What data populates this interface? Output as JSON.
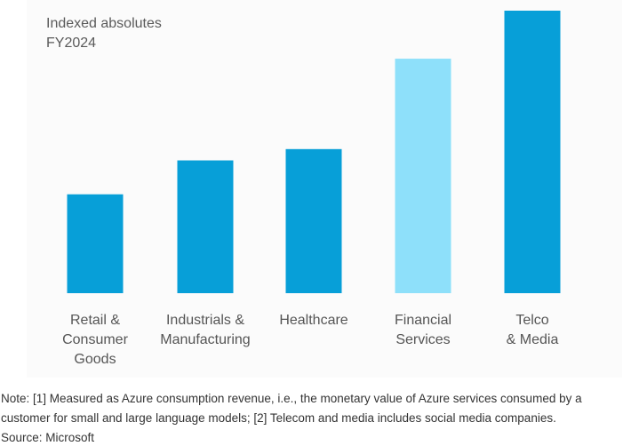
{
  "chart_data": {
    "type": "bar",
    "subtitle_lines": [
      "Indexed absolutes",
      "FY2024"
    ],
    "categories": [
      "Retail &\nConsumer\nGoods",
      "Industrials &\nManufacturing",
      "Healthcare",
      "Financial\nServices",
      "Telco\n& Media"
    ],
    "values": [
      35,
      47,
      51,
      83,
      100
    ],
    "ylim": [
      0,
      100
    ],
    "colors": [
      "#079fd8",
      "#079fd8",
      "#079fd8",
      "#8ee0fa",
      "#079fd8"
    ],
    "grid": false,
    "legend": "none"
  },
  "footnotes": [
    "Note: [1] Measured as Azure consumption revenue, i.e., the monetary value of Azure services consumed by a",
    "customer for small and large language models; [2] Telecom and media includes social media companies.",
    "Source: Microsoft"
  ]
}
